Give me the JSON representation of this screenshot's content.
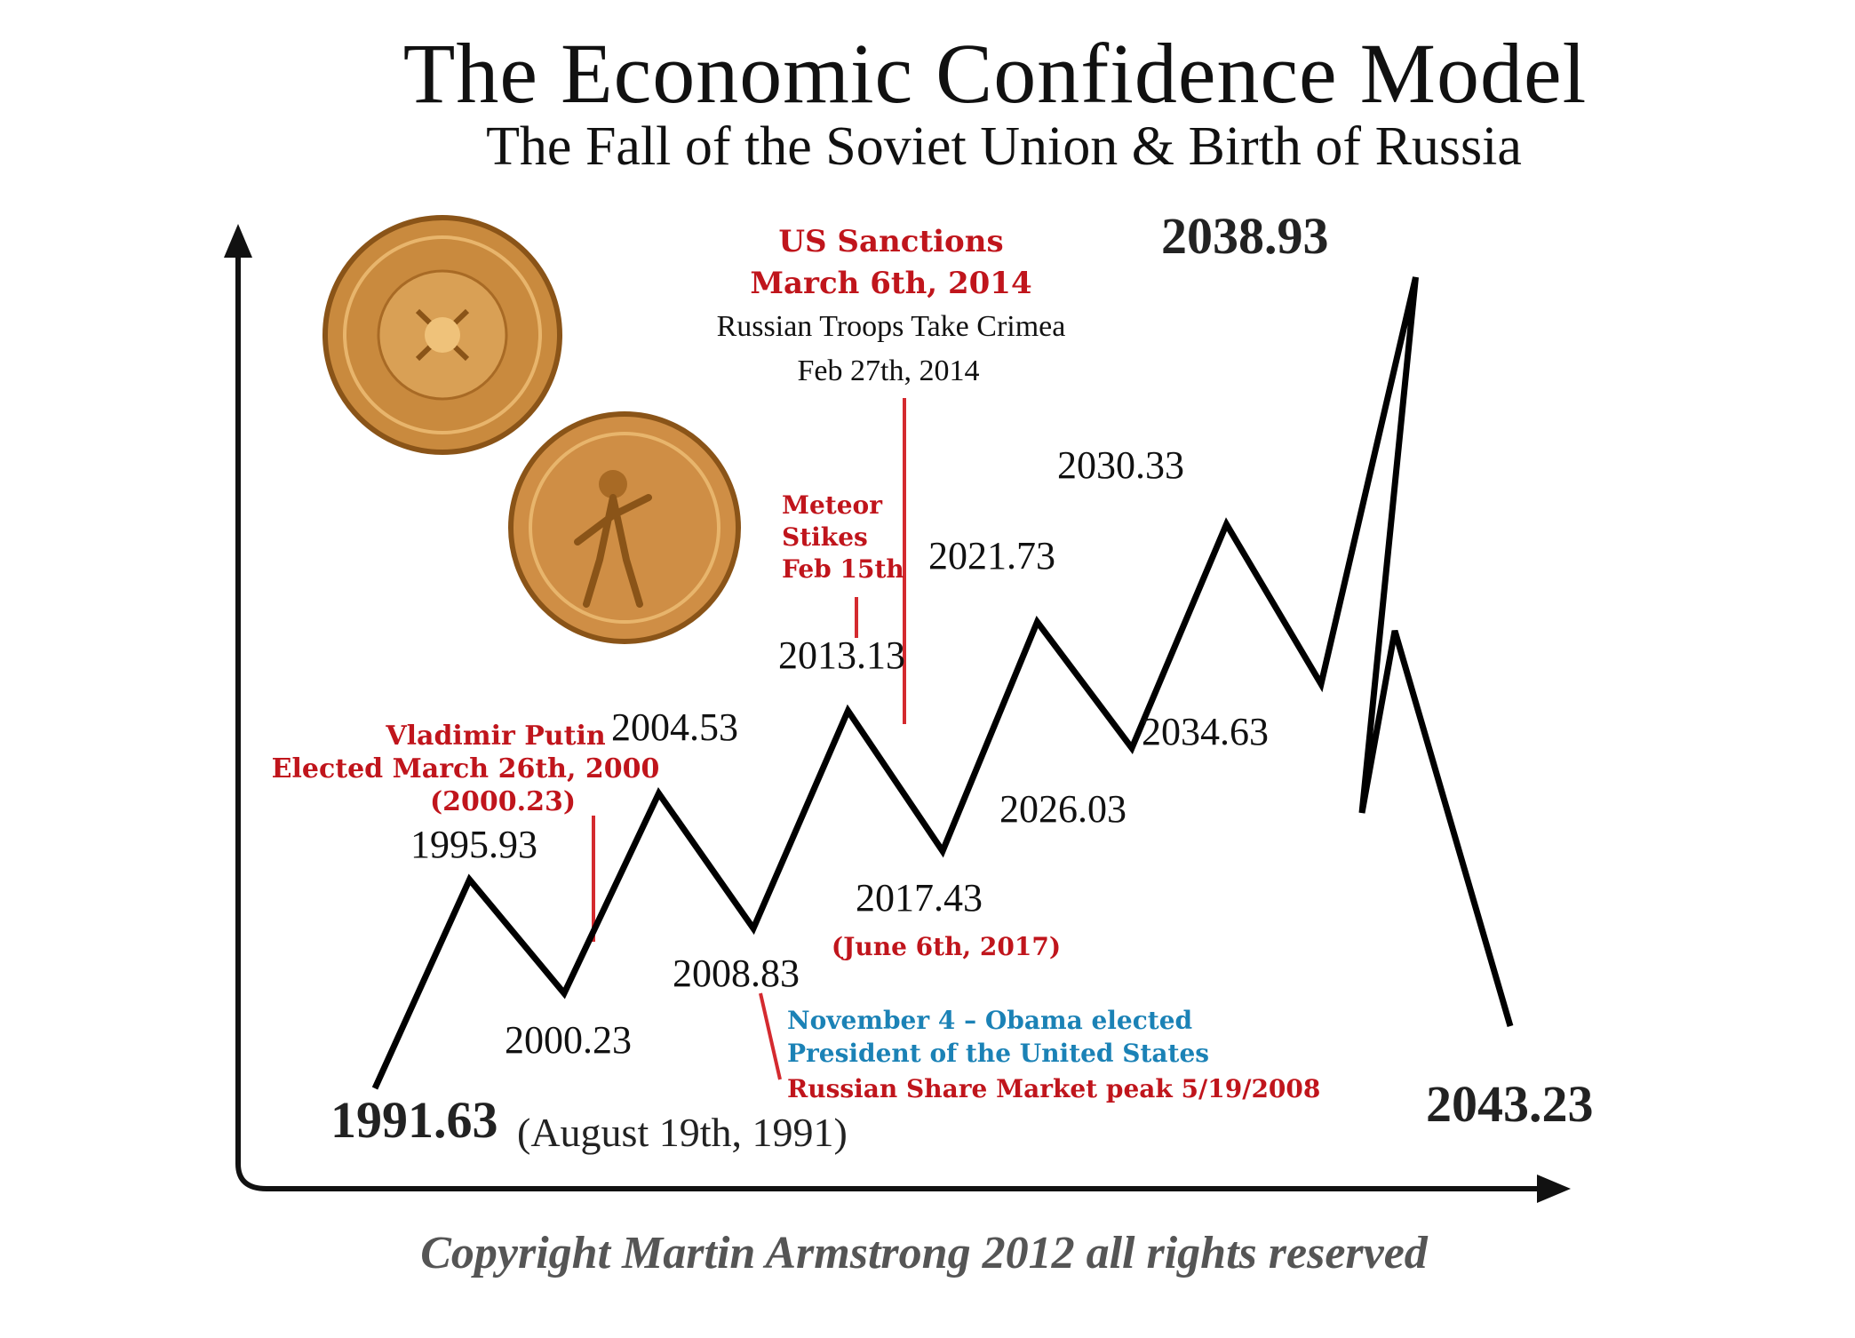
{
  "title": "The Economic Confidence Model",
  "subtitle": "The Fall of the Soviet Union & Birth of Russia",
  "copyright": "Copyright Martin Armstrong 2012 all rights reserved",
  "chart_data": {
    "type": "line",
    "title": "The Economic Confidence Model",
    "subtitle": "The Fall of the Soviet Union & Birth of Russia",
    "xlabel": "",
    "ylabel": "",
    "grid": false,
    "legend": "none",
    "line_color": "#000000",
    "points": [
      {
        "x": 1991.63,
        "label": "1991.63",
        "kind": "low"
      },
      {
        "x": 1995.93,
        "label": "1995.93",
        "kind": "high"
      },
      {
        "x": 2000.23,
        "label": "2000.23",
        "kind": "low"
      },
      {
        "x": 2004.53,
        "label": "2004.53",
        "kind": "high"
      },
      {
        "x": 2008.83,
        "label": "2008.83",
        "kind": "low"
      },
      {
        "x": 2013.13,
        "label": "2013.13",
        "kind": "high"
      },
      {
        "x": 2017.43,
        "label": "2017.43",
        "kind": "low"
      },
      {
        "x": 2021.73,
        "label": "2021.73",
        "kind": "high"
      },
      {
        "x": 2026.03,
        "label": "2026.03",
        "kind": "low"
      },
      {
        "x": 2030.33,
        "label": "2030.33",
        "kind": "high"
      },
      {
        "x": 2034.63,
        "label": "2034.63",
        "kind": "low"
      },
      {
        "x": 2038.93,
        "label": "2038.93",
        "kind": "high"
      },
      {
        "x": 2043.23,
        "label": "2043.23",
        "kind": "low"
      }
    ],
    "start_note": "(August 19th, 1991)",
    "annotations": [
      {
        "lines": [
          "Vladimir Putin",
          "Elected March 26th, 2000",
          "(2000.23)"
        ],
        "color": "#c0151c"
      },
      {
        "lines": [
          "US Sanctions",
          "March 6th, 2014"
        ],
        "color": "#c0151c"
      },
      {
        "lines": [
          "Russian Troops Take Crimea",
          "Feb 27th, 2014"
        ],
        "color": "#111111"
      },
      {
        "lines": [
          "Meteor",
          "Stikes",
          "Feb 15th"
        ],
        "color": "#c0151c"
      },
      {
        "lines": [
          "(June 6th, 2017)"
        ],
        "color": "#c0151c"
      },
      {
        "lines": [
          "November 4 – Obama elected",
          "President of the United States"
        ],
        "color": "#1b82b6"
      },
      {
        "lines": [
          "Russian Share Market peak 5/19/2008"
        ],
        "color": "#c0151c"
      }
    ]
  }
}
